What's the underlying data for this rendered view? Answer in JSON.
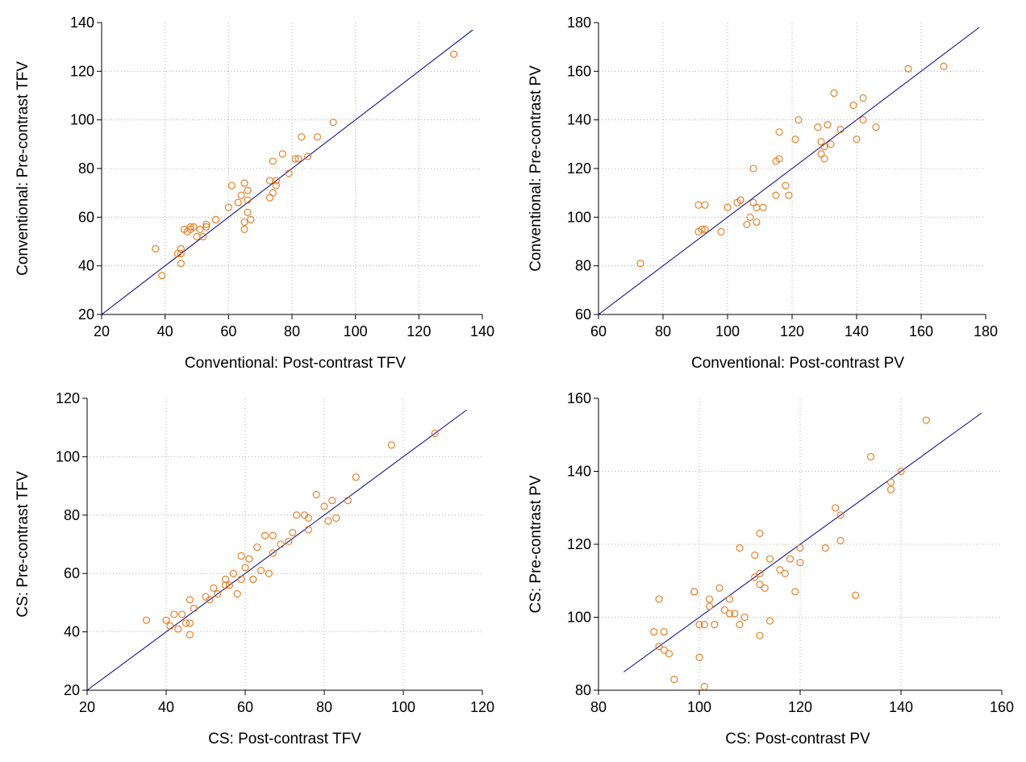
{
  "colors": {
    "points": "#e5771a",
    "identity_line": "#00008b",
    "grid": "#9a9a9a",
    "axis": "#000000"
  },
  "chart_data": [
    {
      "type": "scatter",
      "xlabel": "Conventional: Post-contrast TFV",
      "ylabel": "Conventional: Pre-contrast TFV",
      "xlim": [
        20,
        140
      ],
      "ylim": [
        20,
        140
      ],
      "xticks": [
        20,
        40,
        60,
        80,
        100,
        120,
        140
      ],
      "yticks": [
        20,
        40,
        60,
        80,
        100,
        120,
        140
      ],
      "tick_labels_x": [
        "20",
        "40",
        "60",
        "80",
        "100",
        "120",
        "140"
      ],
      "tick_labels_y": [
        "20",
        "40",
        "60",
        "80",
        "100",
        "120",
        "140"
      ],
      "grid": true,
      "identity_line": [
        20,
        137
      ],
      "points": [
        [
          37,
          47
        ],
        [
          39,
          36
        ],
        [
          44,
          45
        ],
        [
          45,
          41
        ],
        [
          45,
          45
        ],
        [
          45,
          47
        ],
        [
          46,
          55
        ],
        [
          47,
          54
        ],
        [
          48,
          55
        ],
        [
          48,
          56
        ],
        [
          49,
          56
        ],
        [
          50,
          52
        ],
        [
          51,
          55
        ],
        [
          52,
          52
        ],
        [
          53,
          56
        ],
        [
          53,
          57
        ],
        [
          56,
          59
        ],
        [
          60,
          64
        ],
        [
          61,
          73
        ],
        [
          63,
          66
        ],
        [
          64,
          69
        ],
        [
          65,
          74
        ],
        [
          65,
          58
        ],
        [
          65,
          55
        ],
        [
          66,
          62
        ],
        [
          66,
          67
        ],
        [
          66,
          71
        ],
        [
          67,
          59
        ],
        [
          73,
          68
        ],
        [
          73,
          75
        ],
        [
          74,
          70
        ],
        [
          74,
          83
        ],
        [
          75,
          73
        ],
        [
          75,
          75
        ],
        [
          77,
          86
        ],
        [
          79,
          78
        ],
        [
          81,
          84
        ],
        [
          82,
          84
        ],
        [
          83,
          93
        ],
        [
          85,
          85
        ],
        [
          88,
          93
        ],
        [
          93,
          99
        ],
        [
          131,
          127
        ]
      ]
    },
    {
      "type": "scatter",
      "xlabel": "Conventional: Post-contrast PV",
      "ylabel": "Conventional: Pre-contrast PV",
      "xlim": [
        60,
        180
      ],
      "ylim": [
        60,
        180
      ],
      "xticks": [
        60,
        80,
        100,
        120,
        140,
        160,
        180
      ],
      "yticks": [
        60,
        80,
        100,
        120,
        140,
        160,
        180
      ],
      "tick_labels_x": [
        "60",
        "80",
        "100",
        "120",
        "140",
        "160",
        "180"
      ],
      "tick_labels_y": [
        "60",
        "80",
        "100",
        "120",
        "140",
        "160",
        "180"
      ],
      "grid": true,
      "identity_line": [
        60,
        178
      ],
      "points": [
        [
          73,
          81
        ],
        [
          91,
          94
        ],
        [
          91,
          105
        ],
        [
          92,
          95
        ],
        [
          93,
          95
        ],
        [
          93,
          105
        ],
        [
          98,
          94
        ],
        [
          100,
          104
        ],
        [
          103,
          106
        ],
        [
          104,
          107
        ],
        [
          104,
          107
        ],
        [
          106,
          97
        ],
        [
          107,
          100
        ],
        [
          108,
          106
        ],
        [
          108,
          120
        ],
        [
          109,
          98
        ],
        [
          109,
          104
        ],
        [
          111,
          104
        ],
        [
          115,
          109
        ],
        [
          115,
          123
        ],
        [
          116,
          124
        ],
        [
          116,
          135
        ],
        [
          118,
          113
        ],
        [
          119,
          109
        ],
        [
          121,
          132
        ],
        [
          122,
          140
        ],
        [
          128,
          137
        ],
        [
          129,
          126
        ],
        [
          129,
          131
        ],
        [
          130,
          124
        ],
        [
          130,
          129
        ],
        [
          131,
          138
        ],
        [
          132,
          130
        ],
        [
          133,
          151
        ],
        [
          135,
          136
        ],
        [
          139,
          146
        ],
        [
          140,
          132
        ],
        [
          142,
          149
        ],
        [
          142,
          140
        ],
        [
          146,
          137
        ],
        [
          156,
          161
        ],
        [
          167,
          162
        ]
      ]
    },
    {
      "type": "scatter",
      "xlabel": "CS: Post-contrast TFV",
      "ylabel": "CS: Pre-contrast TFV",
      "xlim": [
        20,
        120
      ],
      "ylim": [
        20,
        120
      ],
      "xticks": [
        20,
        40,
        60,
        80,
        100,
        120
      ],
      "yticks": [
        20,
        40,
        60,
        80,
        100,
        120
      ],
      "tick_labels_x": [
        "20",
        "40",
        "60",
        "80",
        "100",
        "120"
      ],
      "tick_labels_y": [
        "20",
        "40",
        "60",
        "80",
        "100",
        "120"
      ],
      "grid": true,
      "identity_line": [
        20,
        116
      ],
      "points": [
        [
          35,
          44
        ],
        [
          40,
          44
        ],
        [
          41,
          42
        ],
        [
          42,
          46
        ],
        [
          43,
          41
        ],
        [
          44,
          46
        ],
        [
          45,
          43
        ],
        [
          46,
          39
        ],
        [
          46,
          51
        ],
        [
          46,
          43
        ],
        [
          47,
          48
        ],
        [
          50,
          52
        ],
        [
          51,
          51
        ],
        [
          52,
          55
        ],
        [
          53,
          53
        ],
        [
          55,
          58
        ],
        [
          55,
          56
        ],
        [
          56,
          56
        ],
        [
          57,
          60
        ],
        [
          58,
          53
        ],
        [
          59,
          58
        ],
        [
          59,
          66
        ],
        [
          60,
          62
        ],
        [
          61,
          65
        ],
        [
          62,
          58
        ],
        [
          62,
          58
        ],
        [
          63,
          69
        ],
        [
          64,
          61
        ],
        [
          65,
          73
        ],
        [
          66,
          60
        ],
        [
          67,
          73
        ],
        [
          67,
          67
        ],
        [
          69,
          70
        ],
        [
          71,
          71
        ],
        [
          72,
          74
        ],
        [
          73,
          80
        ],
        [
          75,
          80
        ],
        [
          76,
          79
        ],
        [
          76,
          75
        ],
        [
          78,
          87
        ],
        [
          80,
          83
        ],
        [
          81,
          78
        ],
        [
          82,
          85
        ],
        [
          83,
          79
        ],
        [
          86,
          85
        ],
        [
          88,
          93
        ],
        [
          97,
          104
        ],
        [
          108,
          108
        ]
      ]
    },
    {
      "type": "scatter",
      "xlabel": "CS: Post-contrast PV",
      "ylabel": "CS: Pre-contrast PV",
      "xlim": [
        80,
        160
      ],
      "ylim": [
        80,
        160
      ],
      "xticks": [
        80,
        100,
        120,
        140,
        160
      ],
      "yticks": [
        80,
        100,
        120,
        140,
        160
      ],
      "tick_labels_x": [
        "80",
        "100",
        "120",
        "140",
        "160"
      ],
      "tick_labels_y": [
        "80",
        "100",
        "120",
        "140",
        "160"
      ],
      "grid": true,
      "identity_line": [
        85,
        156
      ],
      "points": [
        [
          91,
          96
        ],
        [
          92,
          92
        ],
        [
          92,
          105
        ],
        [
          93,
          91
        ],
        [
          93,
          96
        ],
        [
          94,
          90
        ],
        [
          95,
          83
        ],
        [
          99,
          107
        ],
        [
          99,
          107
        ],
        [
          100,
          98
        ],
        [
          100,
          89
        ],
        [
          101,
          81
        ],
        [
          101,
          98
        ],
        [
          102,
          105
        ],
        [
          102,
          103
        ],
        [
          103,
          98
        ],
        [
          104,
          108
        ],
        [
          105,
          102
        ],
        [
          106,
          105
        ],
        [
          106,
          101
        ],
        [
          107,
          101
        ],
        [
          108,
          119
        ],
        [
          108,
          98
        ],
        [
          109,
          100
        ],
        [
          111,
          117
        ],
        [
          111,
          111
        ],
        [
          112,
          112
        ],
        [
          112,
          95
        ],
        [
          112,
          123
        ],
        [
          112,
          109
        ],
        [
          113,
          108
        ],
        [
          114,
          99
        ],
        [
          114,
          116
        ],
        [
          116,
          113
        ],
        [
          117,
          112
        ],
        [
          118,
          116
        ],
        [
          119,
          107
        ],
        [
          120,
          115
        ],
        [
          120,
          119
        ],
        [
          125,
          119
        ],
        [
          127,
          130
        ],
        [
          128,
          128
        ],
        [
          128,
          121
        ],
        [
          131,
          106
        ],
        [
          134,
          144
        ],
        [
          138,
          137
        ],
        [
          138,
          135
        ],
        [
          140,
          140
        ],
        [
          145,
          154
        ]
      ]
    }
  ]
}
